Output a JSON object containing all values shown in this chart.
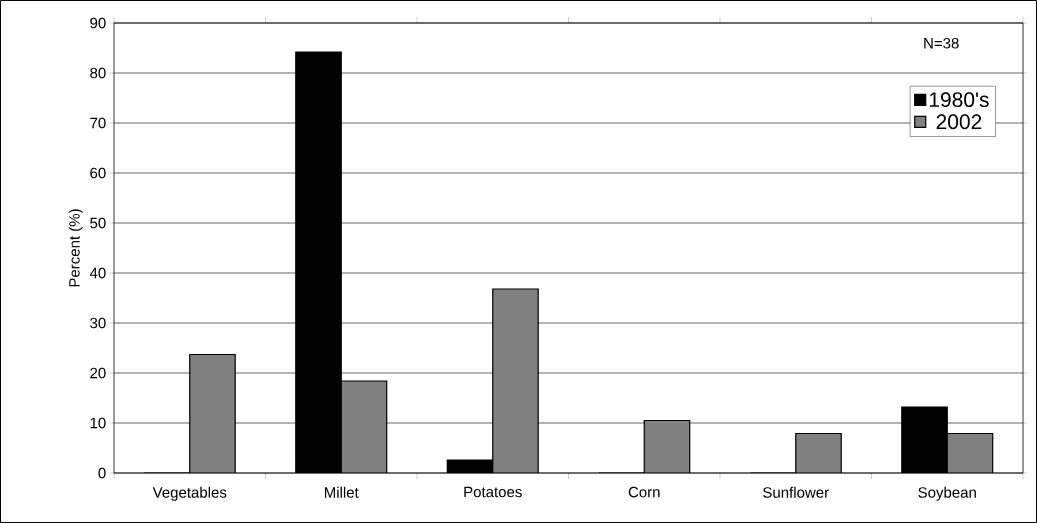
{
  "chart_data": {
    "type": "bar",
    "ylabel": "Percent (%)",
    "categories": [
      "Vegetables",
      "Millet",
      "Potatoes",
      "Corn",
      "Sunflower",
      "Soybean"
    ],
    "series": [
      {
        "name": "1980's",
        "color": "#000000",
        "values": [
          0,
          84.2,
          2.6,
          0,
          0,
          13.2
        ]
      },
      {
        "name": "2002",
        "color": "#808080",
        "values": [
          23.7,
          18.4,
          36.8,
          10.5,
          7.9,
          7.9
        ]
      }
    ],
    "ylim": [
      0,
      90
    ],
    "yticks": [
      0,
      10,
      20,
      30,
      40,
      50,
      60,
      70,
      80,
      90
    ],
    "grid": "y",
    "legend": "top right",
    "annotations": [
      "N=38"
    ]
  }
}
